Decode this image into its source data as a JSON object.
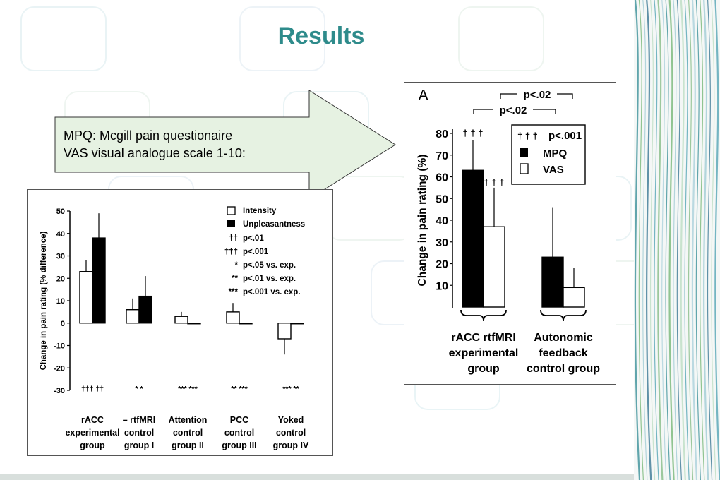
{
  "slide": {
    "title": "Results",
    "callout_lines": [
      "MPQ: Mcgill pain questionaire",
      "VAS visual analogue scale  1-10:"
    ],
    "colors": {
      "title": "#2e8b8b",
      "callout_fill": "#e6f2e2",
      "bar_dark": "#000000",
      "bar_light": "#ffffff"
    }
  },
  "chart_data": [
    {
      "type": "bar",
      "ylabel": "Change in pain rating (% difference)",
      "ylim": [
        -30,
        50
      ],
      "yticks": [
        50,
        40,
        30,
        20,
        10,
        0,
        -10,
        -20,
        -30
      ],
      "categories": [
        [
          "rACC",
          "experimental",
          "group"
        ],
        [
          "– rtfMRI",
          "control",
          "group I"
        ],
        [
          "Attention",
          "control",
          "group II"
        ],
        [
          "PCC",
          "control",
          "group III"
        ],
        [
          "Yoked",
          "control",
          "group IV"
        ]
      ],
      "series": [
        {
          "name": "Intensity",
          "fill": "white",
          "values": [
            23,
            6,
            3,
            5,
            -7
          ],
          "errors": [
            5,
            5,
            2,
            4,
            7
          ]
        },
        {
          "name": "Unpleasantness",
          "fill": "black",
          "values": [
            38,
            12,
            0,
            0,
            0
          ],
          "errors": [
            11,
            9,
            0,
            0,
            0
          ]
        }
      ],
      "legend": [
        {
          "symbol": "††",
          "text": "p<.01"
        },
        {
          "symbol": "†††",
          "text": "p<.001"
        },
        {
          "symbol": "*",
          "text": "p<.05 vs. exp."
        },
        {
          "symbol": "**",
          "text": "p<.01 vs. exp."
        },
        {
          "symbol": "***",
          "text": "p<.001 vs. exp."
        }
      ],
      "bottom_marks": [
        "††† ††",
        "*   *",
        "*** ***",
        "**  ***",
        "***  **"
      ]
    },
    {
      "type": "bar",
      "panel_letter": "A",
      "ylabel": "Change in pain rating (%)",
      "ylim": [
        0,
        80
      ],
      "yticks": [
        80,
        70,
        60,
        50,
        40,
        30,
        20,
        10
      ],
      "categories": [
        [
          "rACC rtfMRI",
          "experimental",
          "group"
        ],
        [
          "Autonomic",
          "feedback",
          "control group"
        ]
      ],
      "series": [
        {
          "name": "MPQ",
          "fill": "black",
          "values": [
            63,
            23
          ],
          "errors": [
            14,
            23
          ]
        },
        {
          "name": "VAS",
          "fill": "white",
          "values": [
            37,
            9
          ],
          "errors": [
            18,
            9
          ]
        }
      ],
      "legend": [
        {
          "symbol": "† † †",
          "text": "p<.001"
        }
      ],
      "significance": [
        "p<.02",
        "p<.02"
      ],
      "bar_marks": [
        "† † †",
        "† † †"
      ]
    }
  ]
}
